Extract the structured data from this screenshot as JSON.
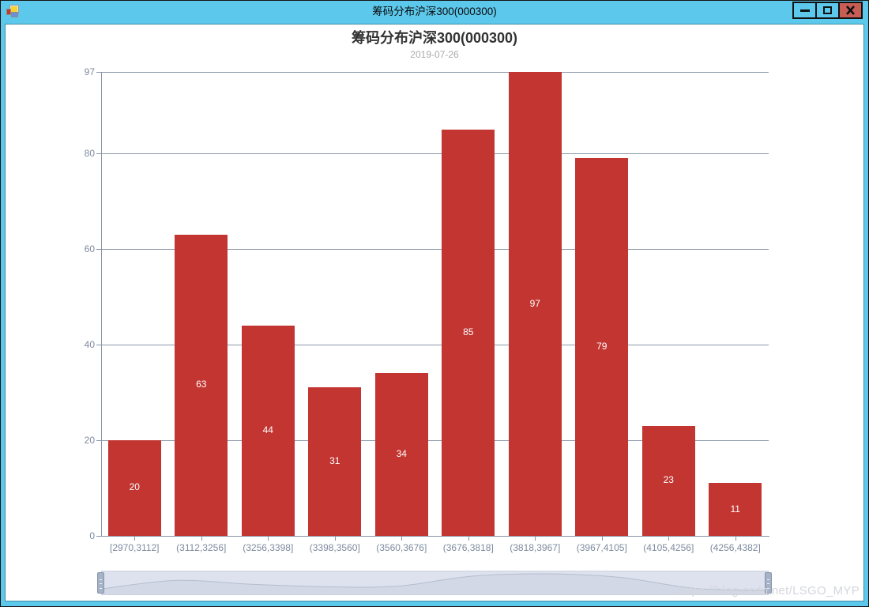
{
  "window": {
    "title": "筹码分布沪深300(000300)",
    "icons": {
      "app_icon": "winforms-app-icon",
      "minimize": "minimize-icon",
      "maximize": "maximize-icon",
      "close": "close-icon"
    }
  },
  "chart": {
    "title": "筹码分布沪深300(000300)",
    "subtitle": "2019-07-26"
  },
  "chart_data": {
    "type": "bar",
    "title": "筹码分布沪深300(000300)",
    "subtitle": "2019-07-26",
    "categories": [
      "[2970,3112]",
      "(3112,3256]",
      "(3256,3398]",
      "(3398,3560]",
      "(3560,3676]",
      "(3676,3818]",
      "(3818,3967]",
      "(3967,4105]",
      "(4105,4256]",
      "(4256,4382]"
    ],
    "values": [
      20,
      63,
      44,
      31,
      34,
      85,
      97,
      79,
      23,
      11
    ],
    "xlabel": "",
    "ylabel": "",
    "ylim": [
      0,
      97
    ],
    "y_ticks": [
      0,
      20,
      40,
      60,
      80,
      97
    ],
    "grid_on": true,
    "legend": "none",
    "bar_color": "#c23531",
    "bar_label_color": "#ffffff",
    "axis_color": "#8795a7",
    "grid_color": "#8c9aab",
    "tick_label_color": "#7d8b9e",
    "datazoom": {
      "visible": true,
      "start_percent": 0,
      "end_percent": 100
    }
  },
  "watermark": "https://blog.csdn.net/LSGO_MYP",
  "colors": {
    "titlebar": "#5cc8ec",
    "window_frame": "#5cc8ec",
    "close_button": "#c75d55",
    "chart_title_text": "#333333",
    "chart_subtitle_text": "#aaaaaa"
  }
}
